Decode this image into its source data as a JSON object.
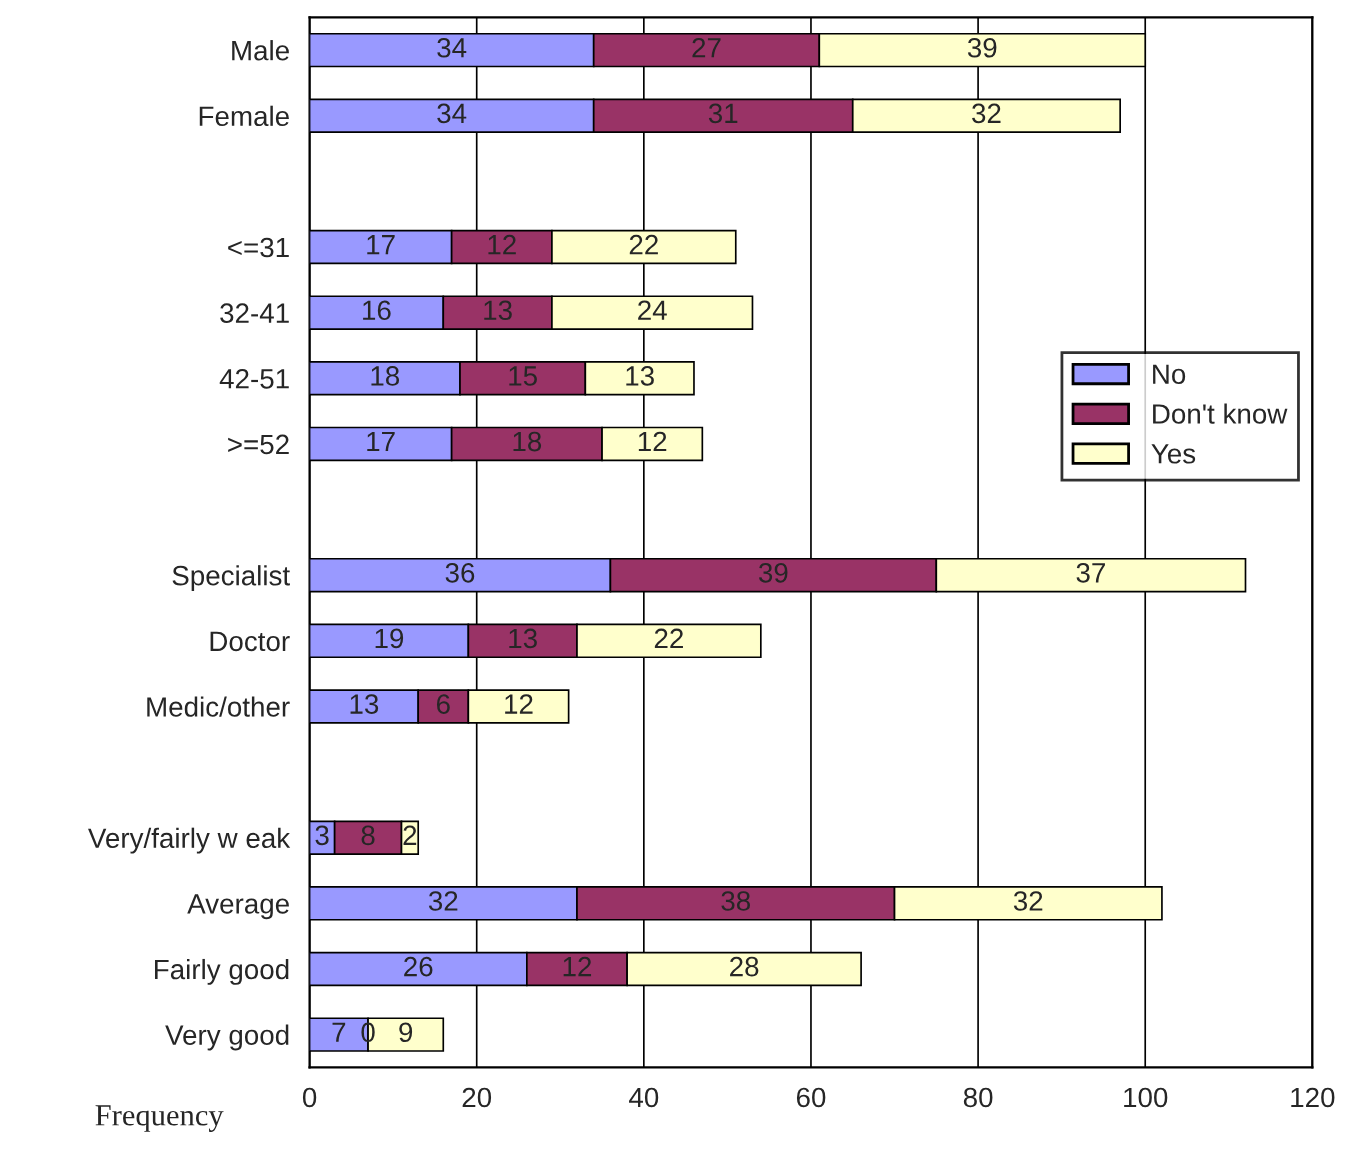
{
  "chart_data": {
    "type": "bar",
    "orientation": "horizontal",
    "stacked": true,
    "xlabel": "Frequency",
    "categories": [
      "Male",
      "Female",
      null,
      "<=31",
      "32-41",
      "42-51",
      ">=52",
      null,
      "Specialist",
      "Doctor",
      "Medic/other",
      null,
      "Very/fairly w eak",
      "Average",
      "Fairly good",
      "Very good"
    ],
    "series": [
      {
        "name": "No",
        "color": "#9999ff",
        "values": [
          34,
          34,
          null,
          17,
          16,
          18,
          17,
          null,
          36,
          19,
          13,
          null,
          3,
          32,
          26,
          7
        ]
      },
      {
        "name": "Don't know",
        "color": "#993366",
        "values": [
          27,
          31,
          null,
          12,
          13,
          15,
          18,
          null,
          39,
          13,
          6,
          null,
          8,
          38,
          12,
          0
        ]
      },
      {
        "name": "Yes",
        "color": "#ffffcc",
        "values": [
          39,
          32,
          null,
          22,
          24,
          13,
          12,
          null,
          37,
          22,
          12,
          null,
          2,
          32,
          28,
          9
        ]
      }
    ],
    "xlim": [
      0,
      120
    ],
    "xticks": [
      0,
      20,
      40,
      60,
      80,
      100,
      120
    ],
    "grid": "x",
    "legend": "right",
    "data_labels": true
  }
}
